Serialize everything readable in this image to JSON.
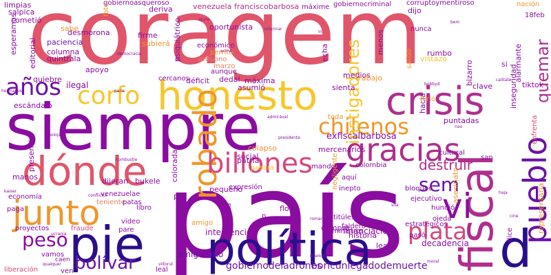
{
  "palette": {
    "red": "#e0556a",
    "purple": "#8a0ca0",
    "magenta": "#b02e8e",
    "orange": "#f0962a",
    "yellow": "#f7c62c",
    "navy": "#2a0f8c",
    "pink": "#d4487c",
    "salmon": "#e98060",
    "violet": "#6a12a8",
    "gold": "#f2ae30"
  },
  "words": [
    {
      "text": "coragem",
      "color": "#e0556a",
      "vertical": false
    },
    {
      "text": "siempre",
      "color": "#8a0ca0",
      "vertical": false
    },
    {
      "text": "país",
      "color": "#8a0ca0",
      "vertical": false
    },
    {
      "text": "política",
      "color": "#2a0f8c",
      "vertical": false
    },
    {
      "text": "dónde",
      "color": "#e0556a",
      "vertical": false
    },
    {
      "text": "pie",
      "color": "#2a0f8c",
      "vertical": false
    },
    {
      "text": "honesto",
      "color": "#f7c62c",
      "vertical": false
    },
    {
      "text": "crisis",
      "color": "#b02e8e",
      "vertical": false
    },
    {
      "text": "fiscal",
      "color": "#b02e8e",
      "vertical": true
    },
    {
      "text": "pueblo",
      "color": "#6a12a8",
      "vertical": true
    },
    {
      "text": "d",
      "color": "#2a0f8c",
      "vertical": false
    },
    {
      "text": "gracias",
      "color": "#b02e8e",
      "vertical": false
    },
    {
      "text": "junto",
      "color": "#f0962a",
      "vertical": false
    },
    {
      "text": "robado",
      "color": "#f0962a",
      "vertical": true
    },
    {
      "text": "vi",
      "color": "#8a0ca0",
      "vertical": false
    },
    {
      "text": "chilenos",
      "color": "#f0962a",
      "vertical": false
    },
    {
      "text": "corfo",
      "color": "#f7c62c",
      "vertical": false
    },
    {
      "text": "billones",
      "color": "#d4487c",
      "vertical": false
    },
    {
      "text": "años",
      "color": "#6a12a8",
      "vertical": false
    },
    {
      "text": "plata",
      "color": "#d4487c",
      "vertical": false
    },
    {
      "text": "instigadores",
      "color": "#f7c62c",
      "vertical": true
    },
    {
      "text": "peso",
      "color": "#8a0ca0",
      "vertical": false
    },
    {
      "text": "sem",
      "color": "#6a12a8",
      "vertical": false
    },
    {
      "text": "bolívar",
      "color": "#6a12a8",
      "vertical": false
    },
    {
      "text": "destruir",
      "color": "#b02e8e",
      "vertical": false
    },
    {
      "text": "quemar",
      "color": "#b02e8e",
      "vertical": true
    },
    {
      "text": "gobiernodeladrones",
      "color": "#6a12a8",
      "vertical": false
    },
    {
      "text": "boricunlegadodemuerte",
      "color": "#6a12a8",
      "vertical": false
    },
    {
      "text": "exfiscalbarbosa",
      "color": "#8a0ca0",
      "vertical": false
    },
    {
      "text": "intervención",
      "color": "#8a0ca0",
      "vertical": false
    },
    {
      "text": "financiación",
      "color": "#8a0ca0",
      "vertical": false
    },
    {
      "text": "amiguismo",
      "color": "#6a12a8",
      "vertical": false
    },
    {
      "text": "decadencia",
      "color": "#8a0ca0",
      "vertical": false
    },
    {
      "text": "venezuela",
      "color": "#b02e8e",
      "vertical": false
    },
    {
      "text": "franciscobarbosa",
      "color": "#b02e8e",
      "vertical": false
    },
    {
      "text": "gobiernoasqueroso",
      "color": "#8a0ca0",
      "vertical": false
    },
    {
      "text": "gobiernocriminal",
      "color": "#8a0ca0",
      "vertical": false
    },
    {
      "text": "corruptoymentiroso",
      "color": "#8a0ca0",
      "vertical": false
    },
    {
      "text": "mercenarios",
      "color": "#8a0ca0",
      "vertical": false
    },
    {
      "text": "psiquiátrico",
      "color": "#8a0ca0",
      "vertical": true
    },
    {
      "text": "oportunista",
      "color": "#8a0ca0",
      "vertical": false
    },
    {
      "text": "económico",
      "color": "#8a0ca0",
      "vertical": false
    },
    {
      "text": "perrito",
      "color": "#f0962a",
      "vertical": false
    },
    {
      "text": "arduono",
      "color": "#e98060",
      "vertical": false
    },
    {
      "text": "marzo",
      "color": "#e98060",
      "vertical": false
    },
    {
      "text": "aunque",
      "color": "#8a0ca0",
      "vertical": false
    },
    {
      "text": "déficit",
      "color": "#8a0ca0",
      "vertical": false
    },
    {
      "text": "dedal",
      "color": "#8a0ca0",
      "vertical": false
    },
    {
      "text": "máxima",
      "color": "#8a0ca0",
      "vertical": false
    },
    {
      "text": "asumió",
      "color": "#8a0ca0",
      "vertical": false
    },
    {
      "text": "ilegal",
      "color": "#8a0ca0",
      "vertical": false
    },
    {
      "text": "quiebre",
      "color": "#8a0ca0",
      "vertical": false
    },
    {
      "text": "escándalo",
      "color": "#8a0ca0",
      "vertical": false
    },
    {
      "text": "presencia",
      "color": "#8a0ca0",
      "vertical": true
    },
    {
      "text": "editorial",
      "color": "#8a0ca0",
      "vertical": true
    },
    {
      "text": "esperamos",
      "color": "#8a0ca0",
      "vertical": true
    },
    {
      "text": "limpias",
      "color": "#8a0ca0",
      "vertical": false
    },
    {
      "text": "salpica",
      "color": "#8a0ca0",
      "vertical": false
    },
    {
      "text": "cometió",
      "color": "#8a0ca0",
      "vertical": false
    },
    {
      "text": "paciencia",
      "color": "#6a12a8",
      "vertical": false
    },
    {
      "text": "columna",
      "color": "#8a0ca0",
      "vertical": false
    },
    {
      "text": "quintrala",
      "color": "#8a0ca0",
      "vertical": false
    },
    {
      "text": "desmorona",
      "color": "#8a0ca0",
      "vertical": false
    },
    {
      "text": "sabe",
      "color": "#f0962a",
      "vertical": false
    },
    {
      "text": "firme",
      "color": "#8a0ca0",
      "vertical": false
    },
    {
      "text": "subierá",
      "color": "#f0962a",
      "vertical": false
    },
    {
      "text": "apoyo",
      "color": "#8a0ca0",
      "vertical": false
    },
    {
      "text": "cercanos",
      "color": "#8a0ca0",
      "vertical": false
    },
    {
      "text": "deriva",
      "color": "#8a0ca0",
      "vertical": false
    },
    {
      "text": "máxime",
      "color": "#8a0ca0",
      "vertical": false
    },
    {
      "text": "nunca",
      "color": "#8a0ca0",
      "vertical": false
    },
    {
      "text": "dijo",
      "color": "#8a0ca0",
      "vertical": false
    },
    {
      "text": "nación",
      "color": "#f0962a",
      "vertical": false
    },
    {
      "text": "18feb",
      "color": "#8a0ca0",
      "vertical": false
    },
    {
      "text": "tiktok",
      "color": "#8a0ca0",
      "vertical": false
    },
    {
      "text": "rumbo",
      "color": "#8a0ca0",
      "vertical": false
    },
    {
      "text": "vistazo",
      "color": "#f7c62c",
      "vertical": false
    },
    {
      "text": "medios",
      "color": "#8a0ca0",
      "vertical": false
    },
    {
      "text": "menos",
      "color": "#8a0ca0",
      "vertical": true
    },
    {
      "text": "echa",
      "color": "#8a0ca0",
      "vertical": true
    },
    {
      "text": "trabajo",
      "color": "#f0962a",
      "vertical": false
    },
    {
      "text": "sienta",
      "color": "#8a0ca0",
      "vertical": false
    },
    {
      "text": "hacia",
      "color": "#8a0ca0",
      "vertical": true
    },
    {
      "text": "hirió",
      "color": "#f0962a",
      "vertical": false
    },
    {
      "text": "bizarro",
      "color": "#8a0ca0",
      "vertical": true
    },
    {
      "text": "alarmante",
      "color": "#8a0ca0",
      "vertical": true
    },
    {
      "text": "inseguridad",
      "color": "#8a0ca0",
      "vertical": true
    },
    {
      "text": "clave",
      "color": "#8a0ca0",
      "vertical": false
    },
    {
      "text": "si",
      "color": "#8a0ca0",
      "vertical": false
    },
    {
      "text": "enfrenta",
      "color": "#d4487c",
      "vertical": true
    },
    {
      "text": "representaría",
      "color": "#f0962a",
      "vertical": true
    },
    {
      "text": "puntadas",
      "color": "#8a0ca0",
      "vertical": false
    },
    {
      "text": "cultural",
      "color": "#8a0ca0",
      "vertical": false
    },
    {
      "text": "san",
      "color": "#8a0ca0",
      "vertical": false
    },
    {
      "text": "colapso",
      "color": "#f0962a",
      "vertical": false
    },
    {
      "text": "social",
      "color": "#8a0ca0",
      "vertical": false
    },
    {
      "text": "patria",
      "color": "#8a0ca0",
      "vertical": false
    },
    {
      "text": "pasará",
      "color": "#f7c62c",
      "vertical": false
    },
    {
      "text": "colorada",
      "color": "#8a0ca0",
      "vertical": true
    },
    {
      "text": "dijeran",
      "color": "#8a0ca0",
      "vertical": false
    },
    {
      "text": "bukele",
      "color": "#8a0ca0",
      "vertical": false
    },
    {
      "text": "manos",
      "color": "#8a0ca0",
      "vertical": false
    },
    {
      "text": "economía",
      "color": "#8a0ca0",
      "vertical": false
    },
    {
      "text": "venezuelae",
      "color": "#8a0ca0",
      "vertical": false
    },
    {
      "text": "teniente",
      "color": "#e98060",
      "vertical": false
    },
    {
      "text": "patas",
      "color": "#8a0ca0",
      "vertical": false
    },
    {
      "text": "libro",
      "color": "#8a0ca0",
      "vertical": false
    },
    {
      "text": "paga",
      "color": "#8a0ca0",
      "vertical": false
    },
    {
      "text": "proyectos",
      "color": "#8a0ca0",
      "vertical": false
    },
    {
      "text": "fraude",
      "color": "#d4487c",
      "vertical": false
    },
    {
      "text": "pare",
      "color": "#8a0ca0",
      "vertical": false
    },
    {
      "text": "video",
      "color": "#8a0ca0",
      "vertical": false
    },
    {
      "text": "pte",
      "color": "#8a0ca0",
      "vertical": false
    },
    {
      "text": "amigo",
      "color": "#f0962a",
      "vertical": false
    },
    {
      "text": "completa",
      "color": "#8a0ca0",
      "vertical": true
    },
    {
      "text": "expresión",
      "color": "#8a0ca0",
      "vertical": false
    },
    {
      "text": "pequeño",
      "color": "#8a0ca0",
      "vertical": false
    },
    {
      "text": "flor",
      "color": "#8a0ca0",
      "vertical": false
    },
    {
      "text": "novia",
      "color": "#8a0ca0",
      "vertical": false
    },
    {
      "text": "compra",
      "color": "#8a0ca0",
      "vertical": false
    },
    {
      "text": "titúlese",
      "color": "#8a0ca0",
      "vertical": false
    },
    {
      "text": "faldero",
      "color": "#8a0ca0",
      "vertical": false
    },
    {
      "text": "historia",
      "color": "#8a0ca0",
      "vertical": false
    },
    {
      "text": "ministros",
      "color": "#8a0ca0",
      "vertical": false
    },
    {
      "text": "mandos",
      "color": "#8a0ca0",
      "vertical": false
    },
    {
      "text": "colombia",
      "color": "#8a0ca0",
      "vertical": false
    },
    {
      "text": "aquí",
      "color": "#8a0ca0",
      "vertical": false
    },
    {
      "text": "inepto",
      "color": "#8a0ca0",
      "vertical": false
    },
    {
      "text": "bloqueo",
      "color": "#8a0ca0",
      "vertical": false
    },
    {
      "text": "ejecutivo",
      "color": "#8a0ca0",
      "vertical": false
    },
    {
      "text": "hundió",
      "color": "#8a0ca0",
      "vertical": false
    },
    {
      "text": "ojeda",
      "color": "#8a0ca0",
      "vertical": false
    },
    {
      "text": "estratégicos",
      "color": "#8a0ca0",
      "vertical": false
    },
    {
      "text": "pasó",
      "color": "#8a0ca0",
      "vertical": false
    },
    {
      "text": "dice",
      "color": "#8a0ca0",
      "vertical": true
    },
    {
      "text": "lea",
      "color": "#8a0ca0",
      "vertical": false
    },
    {
      "text": "vamos",
      "color": "#8a0ca0",
      "vertical": false
    },
    {
      "text": "caen",
      "color": "#8a0ca0",
      "vertical": false
    },
    {
      "text": "liberación",
      "color": "#d4487c",
      "vertical": false
    },
    {
      "text": "ven",
      "color": "#8a0ca0",
      "vertical": false
    },
    {
      "text": "leal",
      "color": "#8a0ca0",
      "vertical": false
    },
    {
      "text": "negligente",
      "color": "#f0962a",
      "vertical": true
    },
    {
      "text": "asesinato",
      "color": "#f0962a",
      "vertical": true
    },
    {
      "text": "foto",
      "color": "#f0962a",
      "vertical": true
    },
    {
      "text": "salido",
      "color": "#f0962a",
      "vertical": true
    },
    {
      "text": "toda",
      "color": "#f0962a",
      "vertical": false
    },
    {
      "text": "n",
      "color": "#8a0ca0",
      "vertical": false
    },
    {
      "text": "ajuns",
      "color": "#8a0ca0",
      "vertical": false
    },
    {
      "text": "interinar",
      "color": "#8a0ca0",
      "vertical": false
    },
    {
      "text": "in",
      "color": "#8a0ca0",
      "vertical": false
    },
    {
      "text": "acme",
      "color": "#8a0ca0",
      "vertical": false
    },
    {
      "text": "democracia",
      "color": "#8a0ca0",
      "vertical": false
    },
    {
      "text": "paris",
      "color": "#8a0ca0",
      "vertical": false
    },
    {
      "text": "hermanos",
      "color": "#8a0ca0",
      "vertical": false
    },
    {
      "text": "kaiser",
      "color": "#8a0ca0",
      "vertical": false
    },
    {
      "text": "ucrania",
      "color": "#8a0ca0",
      "vertical": false
    },
    {
      "text": "conflictul",
      "color": "#8a0ca0",
      "vertical": false
    },
    {
      "text": "exemplo",
      "color": "#8a0ca0",
      "vertical": false
    },
    {
      "text": "ética",
      "color": "#8a0ca0",
      "vertical": false
    },
    {
      "text": "romani",
      "color": "#8a0ca0",
      "vertical": false
    },
    {
      "text": "moral",
      "color": "#8a0ca0",
      "vertical": false
    },
    {
      "text": "cine",
      "color": "#8a0ca0",
      "vertical": false
    },
    {
      "text": "haja",
      "color": "#8a0ca0",
      "vertical": false
    },
    {
      "text": "sua",
      "color": "#8a0ca0",
      "vertical": false
    },
    {
      "text": "nao",
      "color": "#8a0ca0",
      "vertical": false
    },
    {
      "text": "calitate",
      "color": "#8a0ca0",
      "vertical": false
    },
    {
      "text": "bobbyd",
      "color": "#8a0ca0",
      "vertical": false
    },
    {
      "text": "admirável",
      "color": "#8a0ca0",
      "vertical": false
    },
    {
      "text": "presidente",
      "color": "#8a0ca0",
      "vertical": false
    },
    {
      "text": "bolojan",
      "color": "#8a0ca0",
      "vertical": false
    },
    {
      "text": "combustie",
      "color": "#8a0ca0",
      "vertical": false
    },
    {
      "text": "qualquer",
      "color": "#8a0ca0",
      "vertical": false
    },
    {
      "text": "viitorul",
      "color": "#8a0ca0",
      "vertical": false
    },
    {
      "text": "sr",
      "color": "#8a0ca0",
      "vertical": false
    },
    {
      "text": "bem",
      "color": "#8a0ca0",
      "vertical": false
    }
  ]
}
